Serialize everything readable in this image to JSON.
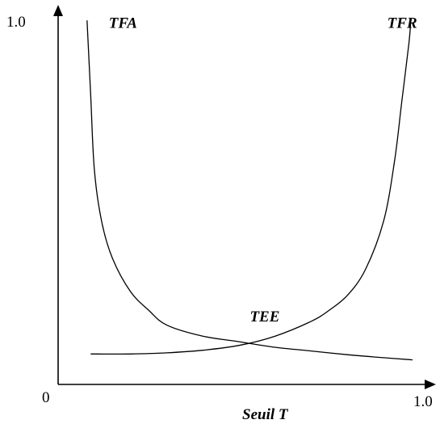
{
  "chart_data": {
    "type": "line",
    "xlabel": "Seuil T",
    "x_ticks": {
      "origin": "0",
      "max": "1.0"
    },
    "y_ticks": {
      "max": "1.0"
    },
    "xlim": [
      0,
      1
    ],
    "ylim": [
      0,
      1
    ],
    "grid": false,
    "series": [
      {
        "name": "TFA",
        "points": [
          [
            0.08,
            0.98
          ],
          [
            0.09,
            0.78
          ],
          [
            0.1,
            0.58
          ],
          [
            0.12,
            0.44
          ],
          [
            0.15,
            0.34
          ],
          [
            0.2,
            0.25
          ],
          [
            0.25,
            0.2
          ],
          [
            0.3,
            0.16
          ],
          [
            0.4,
            0.13
          ],
          [
            0.5,
            0.115
          ],
          [
            0.6,
            0.1
          ],
          [
            0.7,
            0.09
          ],
          [
            0.8,
            0.08
          ],
          [
            0.9,
            0.072
          ],
          [
            0.98,
            0.066
          ]
        ]
      },
      {
        "name": "TFR",
        "points": [
          [
            0.09,
            0.082
          ],
          [
            0.2,
            0.082
          ],
          [
            0.3,
            0.085
          ],
          [
            0.4,
            0.092
          ],
          [
            0.5,
            0.105
          ],
          [
            0.6,
            0.13
          ],
          [
            0.7,
            0.17
          ],
          [
            0.75,
            0.2
          ],
          [
            0.8,
            0.24
          ],
          [
            0.85,
            0.31
          ],
          [
            0.9,
            0.44
          ],
          [
            0.93,
            0.6
          ],
          [
            0.95,
            0.76
          ],
          [
            0.97,
            0.92
          ],
          [
            0.975,
            0.98
          ]
        ]
      }
    ],
    "annotations": [
      {
        "text": "TFA",
        "x": 0.14,
        "y": 0.96
      },
      {
        "text": "TFR",
        "x": 0.91,
        "y": 0.96
      },
      {
        "text": "TEE",
        "x": 0.53,
        "y": 0.17
      }
    ]
  }
}
